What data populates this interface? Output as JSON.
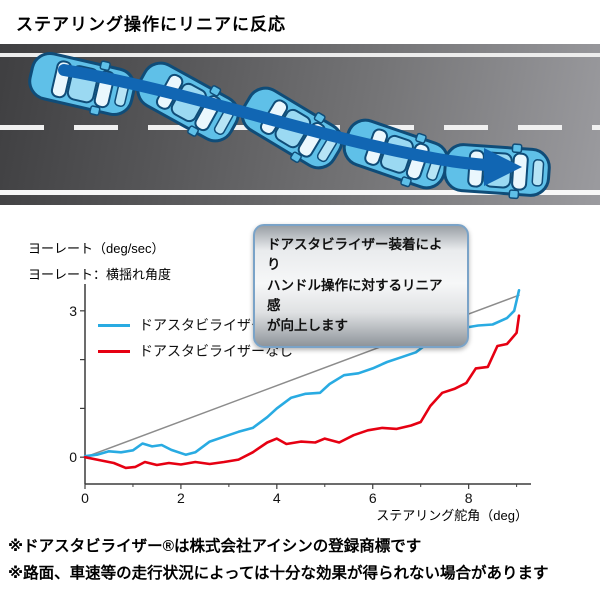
{
  "page": {
    "title": "ステアリング操作にリニアに反応",
    "footnotes": [
      "※ドアスタビライザー®は株式会社アイシンの登録商標です",
      "※路面、車速等の走行状況によっては十分な効果が得られない場合があります"
    ]
  },
  "road": {
    "arrow_color": "#1166b3",
    "car_body_color": "#5fc0e8",
    "car_outline_color": "#0f4c78",
    "car_count": 5
  },
  "callout": {
    "lines": [
      "ドアスタビライザー装着により",
      "ハンドル操作に対するリニア感",
      "が向上します"
    ]
  },
  "chart_data": {
    "type": "line",
    "ylabel_line1": "ヨーレート（deg/sec）",
    "ylabel_line2": "ヨーレート：横揺れ角度",
    "xlabel": "ステアリング舵角（deg）",
    "xlim": [
      0,
      9.3
    ],
    "ylim": [
      -0.55,
      3.55
    ],
    "xticks_major": [
      0,
      2,
      4,
      6,
      8
    ],
    "xticks_minor": [
      1,
      3,
      5,
      7,
      9
    ],
    "yticks": [
      0,
      1,
      2,
      3
    ],
    "ytick_labels": {
      "0": "0",
      "3": "3"
    },
    "grid": false,
    "legend_position": "upper-left-inside",
    "series": [
      {
        "name": "reference-line",
        "color": "#8c8c8c",
        "width": 1.5,
        "points": [
          [
            0,
            0
          ],
          [
            9.05,
            3.32
          ]
        ]
      },
      {
        "name": "ドアスタビライザーあり",
        "color": "#29abe2",
        "width": 2.6,
        "points": [
          [
            0,
            0.02
          ],
          [
            0.25,
            0.05
          ],
          [
            0.5,
            0.12
          ],
          [
            0.75,
            0.1
          ],
          [
            1.0,
            0.14
          ],
          [
            1.2,
            0.28
          ],
          [
            1.4,
            0.22
          ],
          [
            1.6,
            0.25
          ],
          [
            1.8,
            0.15
          ],
          [
            2.1,
            0.05
          ],
          [
            2.3,
            0.1
          ],
          [
            2.6,
            0.32
          ],
          [
            2.9,
            0.42
          ],
          [
            3.2,
            0.52
          ],
          [
            3.5,
            0.6
          ],
          [
            3.8,
            0.82
          ],
          [
            4.0,
            1.0
          ],
          [
            4.3,
            1.22
          ],
          [
            4.6,
            1.3
          ],
          [
            4.9,
            1.32
          ],
          [
            5.1,
            1.5
          ],
          [
            5.4,
            1.68
          ],
          [
            5.7,
            1.72
          ],
          [
            6.0,
            1.82
          ],
          [
            6.3,
            1.95
          ],
          [
            6.6,
            2.05
          ],
          [
            6.9,
            2.15
          ],
          [
            7.1,
            2.3
          ],
          [
            7.3,
            2.6
          ],
          [
            7.6,
            2.65
          ],
          [
            7.9,
            2.65
          ],
          [
            8.2,
            2.7
          ],
          [
            8.5,
            2.72
          ],
          [
            8.8,
            2.85
          ],
          [
            8.95,
            3.0
          ],
          [
            9.05,
            3.42
          ]
        ]
      },
      {
        "name": "ドアスタビライザーなし",
        "color": "#e60012",
        "width": 2.6,
        "points": [
          [
            0,
            0.0
          ],
          [
            0.3,
            -0.06
          ],
          [
            0.6,
            -0.12
          ],
          [
            0.85,
            -0.22
          ],
          [
            1.05,
            -0.2
          ],
          [
            1.25,
            -0.1
          ],
          [
            1.5,
            -0.16
          ],
          [
            1.75,
            -0.12
          ],
          [
            2.0,
            -0.15
          ],
          [
            2.3,
            -0.1
          ],
          [
            2.6,
            -0.14
          ],
          [
            2.9,
            -0.1
          ],
          [
            3.2,
            -0.05
          ],
          [
            3.5,
            0.1
          ],
          [
            3.8,
            0.3
          ],
          [
            4.0,
            0.38
          ],
          [
            4.2,
            0.27
          ],
          [
            4.5,
            0.32
          ],
          [
            4.8,
            0.3
          ],
          [
            5.0,
            0.38
          ],
          [
            5.3,
            0.3
          ],
          [
            5.6,
            0.45
          ],
          [
            5.9,
            0.55
          ],
          [
            6.2,
            0.6
          ],
          [
            6.5,
            0.58
          ],
          [
            6.8,
            0.65
          ],
          [
            7.0,
            0.72
          ],
          [
            7.2,
            1.05
          ],
          [
            7.45,
            1.32
          ],
          [
            7.7,
            1.4
          ],
          [
            7.95,
            1.52
          ],
          [
            8.15,
            1.82
          ],
          [
            8.4,
            1.85
          ],
          [
            8.6,
            2.28
          ],
          [
            8.8,
            2.32
          ],
          [
            9.0,
            2.55
          ],
          [
            9.05,
            2.9
          ]
        ]
      }
    ],
    "legend": [
      {
        "label": "ドアスタビライザーあり",
        "color": "#29abe2"
      },
      {
        "label": "ドアスタビライザーなし",
        "color": "#e60012"
      }
    ]
  }
}
